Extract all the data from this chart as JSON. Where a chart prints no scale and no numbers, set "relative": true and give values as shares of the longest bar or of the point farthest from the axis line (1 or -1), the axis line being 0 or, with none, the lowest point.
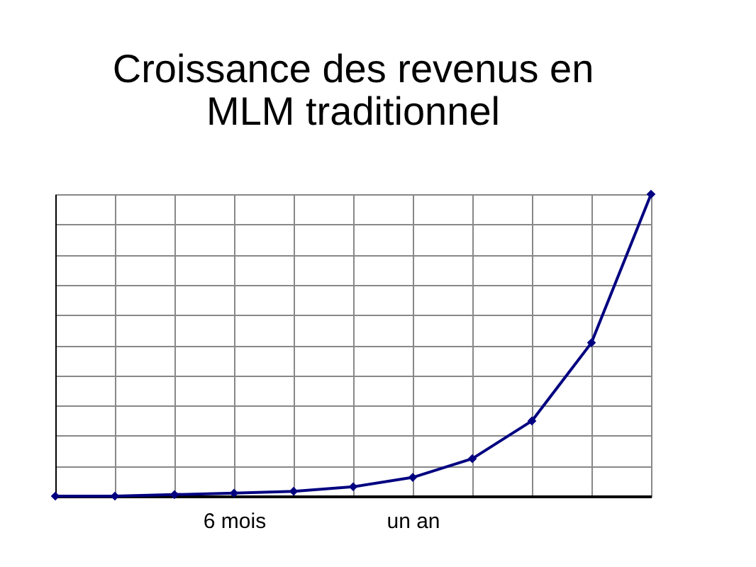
{
  "chart_data": {
    "type": "line",
    "title": [
      "Croissance des revenus en",
      "MLM traditionnel"
    ],
    "categories": [
      null,
      null,
      null,
      "6 mois",
      null,
      null,
      "un an",
      null,
      null,
      null,
      null
    ],
    "series": [
      {
        "color": "#000080",
        "values": [
          0,
          0,
          0.005,
          0.01,
          0.016,
          0.031,
          0.062,
          0.124,
          0.249,
          0.508,
          1
        ]
      }
    ],
    "relative": true,
    "grid": true,
    "marker": "diamond",
    "line_style": "solid"
  }
}
